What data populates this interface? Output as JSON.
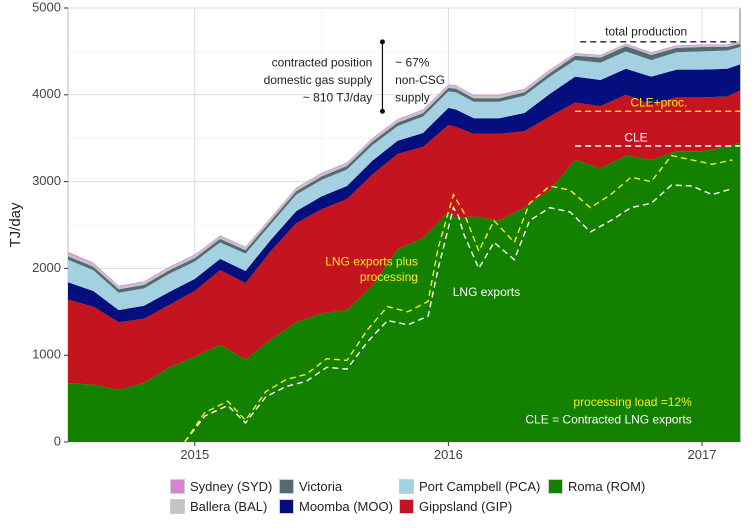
{
  "chart_data": {
    "type": "area",
    "ylabel": "TJ/day",
    "xlabel": "",
    "ylim": [
      0,
      5000
    ],
    "yticks": [
      "0",
      "1000",
      "2000",
      "3000",
      "4000",
      "5000"
    ],
    "xticks": [
      {
        "label": "2015",
        "x": 2015.0
      },
      {
        "label": "2016",
        "x": 2016.0
      },
      {
        "label": "2017",
        "x": 2017.0
      }
    ],
    "xlim": [
      2014.5,
      2017.15
    ],
    "grid": true,
    "legend_position": "bottom",
    "x": [
      2014.5,
      2014.6,
      2014.7,
      2014.8,
      2014.9,
      2015.0,
      2015.1,
      2015.2,
      2015.3,
      2015.4,
      2015.5,
      2015.6,
      2015.7,
      2015.8,
      2015.9,
      2016.0,
      2016.03,
      2016.1,
      2016.2,
      2016.3,
      2016.4,
      2016.5,
      2016.6,
      2016.7,
      2016.8,
      2016.9,
      2017.0,
      2017.1,
      2017.15
    ],
    "series": [
      {
        "name": "Roma (ROM)",
        "color": "#138000",
        "values": [
          680,
          660,
          600,
          680,
          860,
          980,
          1120,
          950,
          1180,
          1380,
          1480,
          1520,
          1800,
          2220,
          2350,
          2650,
          2580,
          2600,
          2550,
          2700,
          2900,
          3250,
          3150,
          3300,
          3250,
          3350,
          3350,
          3400,
          3450
        ]
      },
      {
        "name": "Gippsland (GIP)",
        "color": "#c3141f",
        "values": [
          960,
          900,
          780,
          740,
          720,
          760,
          860,
          880,
          1020,
          1140,
          1200,
          1280,
          1280,
          1100,
          1050,
          1000,
          1050,
          950,
          1000,
          880,
          850,
          660,
          720,
          700,
          640,
          620,
          620,
          580,
          600
        ]
      },
      {
        "name": "Moomba (MOO)",
        "color": "#040f7d",
        "values": [
          200,
          180,
          140,
          150,
          150,
          140,
          130,
          140,
          130,
          140,
          150,
          150,
          160,
          150,
          160,
          200,
          200,
          180,
          180,
          210,
          260,
          300,
          300,
          300,
          320,
          320,
          320,
          320,
          300
        ]
      },
      {
        "name": "Port Campbell (PCA)",
        "color": "#a4d1e1",
        "values": [
          260,
          240,
          200,
          200,
          210,
          200,
          190,
          200,
          180,
          190,
          190,
          190,
          180,
          170,
          190,
          190,
          200,
          190,
          190,
          200,
          200,
          190,
          200,
          200,
          190,
          200,
          210,
          210,
          200
        ]
      },
      {
        "name": "Victoria",
        "color": "#546a71",
        "values": [
          40,
          40,
          40,
          40,
          40,
          40,
          40,
          40,
          40,
          40,
          40,
          40,
          40,
          40,
          40,
          40,
          40,
          40,
          40,
          40,
          40,
          50,
          60,
          60,
          60,
          50,
          50,
          40,
          40
        ]
      },
      {
        "name": "Ballera (BAL)",
        "color": "#c4c4c4",
        "values": [
          30,
          30,
          30,
          30,
          30,
          30,
          30,
          30,
          30,
          30,
          30,
          30,
          30,
          30,
          30,
          30,
          30,
          30,
          30,
          30,
          30,
          20,
          20,
          20,
          20,
          20,
          20,
          20,
          20
        ]
      },
      {
        "name": "Sydney (SYD)",
        "color": "#d884d4",
        "values": [
          20,
          15,
          10,
          10,
          10,
          10,
          10,
          10,
          10,
          10,
          10,
          10,
          10,
          10,
          10,
          10,
          10,
          10,
          10,
          10,
          10,
          10,
          10,
          10,
          10,
          10,
          10,
          10,
          10
        ]
      }
    ],
    "lines": [
      {
        "name": "LNG exports",
        "color": "#ffffff",
        "x": [
          2014.96,
          2015.04,
          2015.13,
          2015.2,
          2015.28,
          2015.36,
          2015.44,
          2015.52,
          2015.6,
          2015.68,
          2015.76,
          2015.84,
          2015.92,
          2015.96,
          2016.02,
          2016.04,
          2016.06,
          2016.12,
          2016.18,
          2016.26,
          2016.32,
          2016.4,
          2016.48,
          2016.56,
          2016.64,
          2016.72,
          2016.8,
          2016.88,
          2016.96,
          2017.04,
          2017.12
        ],
        "y": [
          0,
          300,
          420,
          220,
          520,
          640,
          700,
          860,
          840,
          1150,
          1400,
          1350,
          1450,
          2000,
          2700,
          2600,
          2400,
          2000,
          2300,
          2100,
          2550,
          2700,
          2650,
          2420,
          2550,
          2700,
          2750,
          2960,
          2950,
          2850,
          2920
        ]
      },
      {
        "name": "LNG exports plus processing",
        "color": "#f6ec1f",
        "x": [
          2014.96,
          2015.04,
          2015.13,
          2015.2,
          2015.28,
          2015.36,
          2015.44,
          2015.52,
          2015.6,
          2015.68,
          2015.76,
          2015.84,
          2015.92,
          2015.96,
          2016.02,
          2016.04,
          2016.06,
          2016.12,
          2016.18,
          2016.26,
          2016.32,
          2016.4,
          2016.48,
          2016.56,
          2016.64,
          2016.72,
          2016.8,
          2016.88,
          2016.96,
          2017.04,
          2017.12
        ],
        "y": [
          0,
          340,
          470,
          250,
          580,
          720,
          780,
          960,
          940,
          1290,
          1560,
          1500,
          1620,
          2240,
          2850,
          2750,
          2650,
          2200,
          2550,
          2300,
          2750,
          2950,
          2900,
          2700,
          2850,
          3050,
          3000,
          3300,
          3250,
          3200,
          3250
        ]
      },
      {
        "name": "total production",
        "color": "#222222",
        "x": [
          2016.52,
          2017.15
        ],
        "y": [
          4610,
          4610
        ]
      },
      {
        "name": "CLE+proc.",
        "color": "#f6ec1f",
        "x": [
          2016.5,
          2017.15
        ],
        "y": [
          3810,
          3810
        ]
      },
      {
        "name": "CLE",
        "color": "#ffffff",
        "x": [
          2016.5,
          2017.15
        ],
        "y": [
          3410,
          3410
        ]
      }
    ],
    "annotations": [
      {
        "text": "total production",
        "color": "#222222",
        "x": 2016.78,
        "y": 4720
      },
      {
        "text": "CLE+proc.",
        "color": "#f6ec1f",
        "x": 2016.83,
        "y": 3900
      },
      {
        "text": "CLE",
        "color": "#ffffff",
        "x": 2016.74,
        "y": 3500
      },
      {
        "text": "contracted position",
        "color": "#222222",
        "x": 2015.7,
        "y": 4360
      },
      {
        "text": "domestic gas supply",
        "color": "#222222",
        "x": 2015.7,
        "y": 4160
      },
      {
        "text": "~ 810 TJ/day",
        "color": "#222222",
        "x": 2015.7,
        "y": 3960
      },
      {
        "text": "~ 67%",
        "color": "#222222",
        "x": 2015.79,
        "y": 4360
      },
      {
        "text": "non-CSG",
        "color": "#222222",
        "x": 2015.79,
        "y": 4160
      },
      {
        "text": "supply",
        "color": "#222222",
        "x": 2015.79,
        "y": 3960
      },
      {
        "text": "LNG exports plus",
        "color": "#f6ec1f",
        "x": 2015.88,
        "y": 2070
      },
      {
        "text": "processing",
        "color": "#f6ec1f",
        "x": 2015.88,
        "y": 1890
      },
      {
        "text": "LNG exports",
        "color": "#ffffff",
        "x": 2016.15,
        "y": 1720
      },
      {
        "text": "processing load =12%",
        "color": "#f6ec1f",
        "x": 2016.96,
        "y": 450
      },
      {
        "text": "CLE = Contracted LNG exports",
        "color": "#ffffff",
        "x": 2016.96,
        "y": 250
      }
    ],
    "bracket": {
      "x": 2015.74,
      "y1": 3810,
      "y2": 4610
    }
  },
  "legend": {
    "items": [
      {
        "name": "Sydney (SYD)",
        "color": "#d884d4"
      },
      {
        "name": "Victoria",
        "color": "#546a71"
      },
      {
        "name": "Port Campbell (PCA)",
        "color": "#a4d1e1"
      },
      {
        "name": "Roma (ROM)",
        "color": "#138000"
      },
      {
        "name": "Ballera (BAL)",
        "color": "#c4c4c4"
      },
      {
        "name": "Moomba (MOO)",
        "color": "#040f7d"
      },
      {
        "name": "Gippsland (GIP)",
        "color": "#c3141f"
      }
    ]
  }
}
